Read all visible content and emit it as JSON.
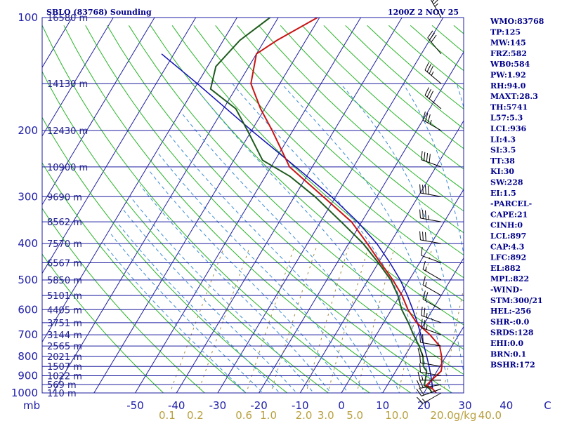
{
  "header": {
    "station": "SBLO (83768) Sounding",
    "time": "1200Z  2 NOV 25"
  },
  "indices": [
    "WMO:83768",
    "TP:125",
    "MW:145",
    "FRZ:582",
    "WB0:584",
    "PW:1.92",
    "RH:94.0",
    "MAXT:28.3",
    "TH:5741",
    "L57:5.3",
    "LCL:936",
    "LI:4.3",
    "SI:3.5",
    "TT:38",
    "KI:30",
    "SW:228",
    "EI:1.5",
    "-PARCEL-",
    "CAPE:21",
    "CINH:0",
    "LCL:897",
    "CAP:4.3",
    "LFC:892",
    "EL:882",
    "MPL:822",
    "-WIND-",
    "STM:300/21",
    "HEL:-256",
    "SHR-:0.0",
    "SRDS:128",
    "EHI:0.0",
    "BRN:0.1",
    "BSHR:172"
  ],
  "colors": {
    "temperature": "#c81414",
    "dewpoint": "#1e5a1e",
    "parcel": "#1010b4",
    "isobar": "#1e1ea0",
    "isotherm": "#1e1ea0",
    "dry_adiabat": "#28b428",
    "moist_adiabat": "#3c8cd2",
    "mixing_ratio": "#a08c3c",
    "barb": "#000000"
  },
  "chart_data": {
    "type": "skew-t",
    "title": "SBLO (83768) Sounding",
    "pressure_axis": {
      "label": "mb",
      "range": [
        1000,
        100
      ],
      "ticks": [
        100,
        200,
        300,
        400,
        500,
        600,
        700,
        800,
        900,
        1000
      ],
      "tick_labels": [
        "100",
        "200",
        "300",
        "400",
        "500",
        "600",
        "700",
        "800",
        "900",
        "1000"
      ]
    },
    "temperature_axis": {
      "label": "",
      "ticks": [
        -50,
        -40,
        -30,
        -20,
        -10,
        0,
        10,
        20,
        30,
        40,
        50
      ],
      "tick_labels": [
        "-50",
        "-40",
        "-30",
        "-20",
        "-10",
        "0",
        "10",
        "20",
        "30",
        "40",
        "C"
      ]
    },
    "mixing_ratio_axis": {
      "unit": "g/kg",
      "values": [
        0.1,
        0.2,
        0.6,
        1.0,
        2.0,
        3.0,
        5.0,
        10.0,
        20.0,
        40.0
      ],
      "labels": [
        "0.1",
        "0.2",
        "0.6",
        "1.0",
        "2.0",
        "3.0",
        "5.0",
        "10.0",
        "20.0",
        "40.0"
      ]
    },
    "height_labels": [
      {
        "p": 100,
        "h": "16580 m"
      },
      {
        "p": 150,
        "h": "14130 m"
      },
      {
        "p": 200,
        "h": "12430 m"
      },
      {
        "p": 250,
        "h": "10900 m"
      },
      {
        "p": 300,
        "h": "9690 m"
      },
      {
        "p": 350,
        "h": "8562 m"
      },
      {
        "p": 400,
        "h": "7570 m"
      },
      {
        "p": 450,
        "h": "6567 m"
      },
      {
        "p": 500,
        "h": "5850 m"
      },
      {
        "p": 550,
        "h": "5101 m"
      },
      {
        "p": 600,
        "h": "4405 m"
      },
      {
        "p": 650,
        "h": "3751 m"
      },
      {
        "p": 700,
        "h": "3144 m"
      },
      {
        "p": 750,
        "h": "2565 m"
      },
      {
        "p": 800,
        "h": "2021 m"
      },
      {
        "p": 850,
        "h": "1507 m"
      },
      {
        "p": 900,
        "h": "1022 m"
      },
      {
        "p": 950,
        "h": "569 m"
      },
      {
        "p": 1000,
        "h": "110 m"
      }
    ],
    "temperature": [
      {
        "p": 1000,
        "t": 23.0
      },
      {
        "p": 975,
        "t": 21.5
      },
      {
        "p": 955,
        "t": 19.5
      },
      {
        "p": 925,
        "t": 20.0
      },
      {
        "p": 900,
        "t": 20.5
      },
      {
        "p": 875,
        "t": 21.0
      },
      {
        "p": 850,
        "t": 20.5
      },
      {
        "p": 800,
        "t": 19.0
      },
      {
        "p": 750,
        "t": 17.0
      },
      {
        "p": 700,
        "t": 13.0
      },
      {
        "p": 650,
        "t": 8.0
      },
      {
        "p": 600,
        "t": 4.0
      },
      {
        "p": 550,
        "t": 0.5
      },
      {
        "p": 500,
        "t": -4.0
      },
      {
        "p": 450,
        "t": -9.5
      },
      {
        "p": 400,
        "t": -15.5
      },
      {
        "p": 350,
        "t": -22.5
      },
      {
        "p": 300,
        "t": -33.0
      },
      {
        "p": 250,
        "t": -45.5
      },
      {
        "p": 200,
        "t": -55.0
      },
      {
        "p": 175,
        "t": -61.0
      },
      {
        "p": 150,
        "t": -67.0
      },
      {
        "p": 125,
        "t": -70.0
      },
      {
        "p": 115,
        "t": -67.0
      },
      {
        "p": 100,
        "t": -60.5
      }
    ],
    "dewpoint": [
      {
        "p": 1000,
        "td": 22.0
      },
      {
        "p": 975,
        "td": 20.8
      },
      {
        "p": 955,
        "td": 19.0
      },
      {
        "p": 925,
        "td": 18.5
      },
      {
        "p": 900,
        "td": 18.0
      },
      {
        "p": 875,
        "td": 17.5
      },
      {
        "p": 850,
        "td": 16.0
      },
      {
        "p": 800,
        "td": 14.5
      },
      {
        "p": 750,
        "td": 12.0
      },
      {
        "p": 700,
        "td": 9.0
      },
      {
        "p": 650,
        "td": 6.0
      },
      {
        "p": 600,
        "td": 2.5
      },
      {
        "p": 550,
        "td": -0.5
      },
      {
        "p": 500,
        "td": -4.5
      },
      {
        "p": 450,
        "td": -10.0
      },
      {
        "p": 400,
        "td": -16.5
      },
      {
        "p": 350,
        "td": -25.0
      },
      {
        "p": 300,
        "td": -35.0
      },
      {
        "p": 265,
        "td": -44.0
      },
      {
        "p": 240,
        "td": -53.0
      },
      {
        "p": 200,
        "td": -61.0
      },
      {
        "p": 175,
        "td": -67.0
      },
      {
        "p": 155,
        "td": -76.0
      },
      {
        "p": 135,
        "td": -78.0
      },
      {
        "p": 115,
        "td": -76.0
      },
      {
        "p": 100,
        "td": -72.0
      }
    ],
    "parcel": [
      {
        "p": 1000,
        "t": 23.0
      },
      {
        "p": 975,
        "t": 21.5
      },
      {
        "p": 950,
        "t": 20.8
      },
      {
        "p": 900,
        "t": 19.2
      },
      {
        "p": 850,
        "t": 17.4
      },
      {
        "p": 800,
        "t": 15.4
      },
      {
        "p": 750,
        "t": 13.2
      },
      {
        "p": 700,
        "t": 10.8
      },
      {
        "p": 650,
        "t": 8.2
      },
      {
        "p": 600,
        "t": 5.2
      },
      {
        "p": 550,
        "t": 1.8
      },
      {
        "p": 500,
        "t": -2.2
      },
      {
        "p": 450,
        "t": -7.2
      },
      {
        "p": 400,
        "t": -13.2
      },
      {
        "p": 350,
        "t": -21.0
      },
      {
        "p": 300,
        "t": -31.0
      },
      {
        "p": 250,
        "t": -44.0
      },
      {
        "p": 200,
        "t": -60.0
      },
      {
        "p": 150,
        "t": -80.0
      },
      {
        "p": 125,
        "t": -93.0
      }
    ],
    "wind": [
      {
        "p": 1000,
        "dir": 240,
        "kt": 15
      },
      {
        "p": 975,
        "dir": 250,
        "kt": 20
      },
      {
        "p": 950,
        "dir": 260,
        "kt": 20
      },
      {
        "p": 925,
        "dir": 270,
        "kt": 15
      },
      {
        "p": 900,
        "dir": 280,
        "kt": 10
      },
      {
        "p": 850,
        "dir": 280,
        "kt": 10
      },
      {
        "p": 800,
        "dir": 270,
        "kt": 15
      },
      {
        "p": 750,
        "dir": 280,
        "kt": 20
      },
      {
        "p": 700,
        "dir": 290,
        "kt": 25
      },
      {
        "p": 650,
        "dir": 290,
        "kt": 25
      },
      {
        "p": 600,
        "dir": 300,
        "kt": 20
      },
      {
        "p": 550,
        "dir": 300,
        "kt": 15
      },
      {
        "p": 500,
        "dir": 300,
        "kt": 15
      },
      {
        "p": 450,
        "dir": 290,
        "kt": 10
      },
      {
        "p": 400,
        "dir": 280,
        "kt": 30
      },
      {
        "p": 350,
        "dir": 280,
        "kt": 35
      },
      {
        "p": 300,
        "dir": 280,
        "kt": 40
      },
      {
        "p": 250,
        "dir": 290,
        "kt": 40
      },
      {
        "p": 200,
        "dir": 300,
        "kt": 35
      },
      {
        "p": 175,
        "dir": 310,
        "kt": 30
      },
      {
        "p": 150,
        "dir": 310,
        "kt": 35
      },
      {
        "p": 125,
        "dir": 320,
        "kt": 30
      },
      {
        "p": 100,
        "dir": 330,
        "kt": 35
      }
    ]
  }
}
